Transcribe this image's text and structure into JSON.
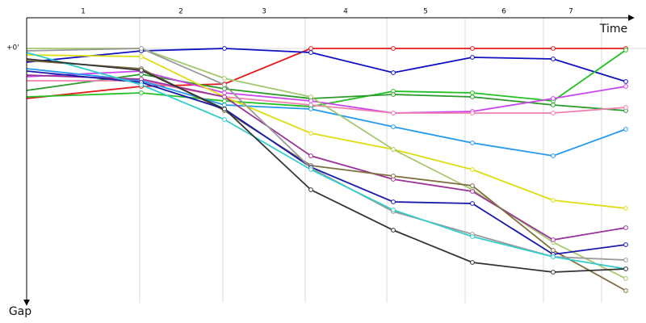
{
  "chart_data": {
    "type": "line",
    "x_label": "Time",
    "y_label": "Gap",
    "x": [
      0,
      142,
      245,
      352,
      454,
      552,
      652,
      742
    ],
    "xlim": [
      0,
      767
    ],
    "xticks": [
      {
        "value": 70,
        "label": "1"
      },
      {
        "value": 191,
        "label": "2"
      },
      {
        "value": 294,
        "label": "3"
      },
      {
        "value": 395,
        "label": "4"
      },
      {
        "value": 494,
        "label": "5"
      },
      {
        "value": 591,
        "label": "6"
      },
      {
        "value": 674,
        "label": "7"
      }
    ],
    "x_grid": [
      140,
      243,
      345,
      446,
      543,
      640,
      712
    ],
    "ylim": [
      0,
      315
    ],
    "yticks": [
      {
        "value": 0,
        "label": "+0'"
      }
    ],
    "series": [
      {
        "color": "#e41a1c",
        "values": [
          62,
          47,
          44,
          0,
          0,
          0,
          0,
          0
        ]
      },
      {
        "color": "#1010c0",
        "values": [
          17,
          3,
          0,
          5,
          30,
          11,
          13,
          41
        ]
      },
      {
        "color": "#22c022",
        "values": [
          60,
          55,
          65,
          72,
          53,
          55,
          65,
          2
        ]
      },
      {
        "color": "#2a9a2a",
        "values": [
          52,
          32,
          50,
          62,
          57,
          60,
          70,
          77
        ]
      },
      {
        "color": "#cc44ee",
        "values": [
          35,
          28,
          55,
          65,
          80,
          78,
          62,
          47
        ]
      },
      {
        "color": "#f080b0",
        "values": [
          40,
          40,
          60,
          70,
          80,
          80,
          80,
          73
        ]
      },
      {
        "color": "#2299ee",
        "values": [
          25,
          40,
          70,
          75,
          97,
          117,
          133,
          100
        ]
      },
      {
        "color": "#dddd11",
        "values": [
          8,
          10,
          60,
          105,
          125,
          150,
          188,
          198
        ]
      },
      {
        "color": "#a4c870",
        "values": [
          0,
          0,
          37,
          60,
          125,
          175,
          240,
          285
        ]
      },
      {
        "color": "#993399",
        "values": [
          33,
          38,
          60,
          133,
          162,
          177,
          237,
          222
        ]
      },
      {
        "color": "#807040",
        "values": [
          15,
          25,
          77,
          145,
          158,
          170,
          250,
          300
        ]
      },
      {
        "color": "#1a1aaa",
        "values": [
          28,
          42,
          75,
          147,
          190,
          192,
          255,
          243
        ]
      },
      {
        "color": "#999999",
        "values": [
          3,
          0,
          45,
          148,
          202,
          230,
          258,
          262
        ]
      },
      {
        "color": "#33cccc",
        "values": [
          5,
          45,
          88,
          150,
          200,
          233,
          258,
          273
        ]
      },
      {
        "color": "#333333",
        "values": [
          13,
          27,
          75,
          175,
          225,
          265,
          277,
          273
        ]
      }
    ]
  }
}
